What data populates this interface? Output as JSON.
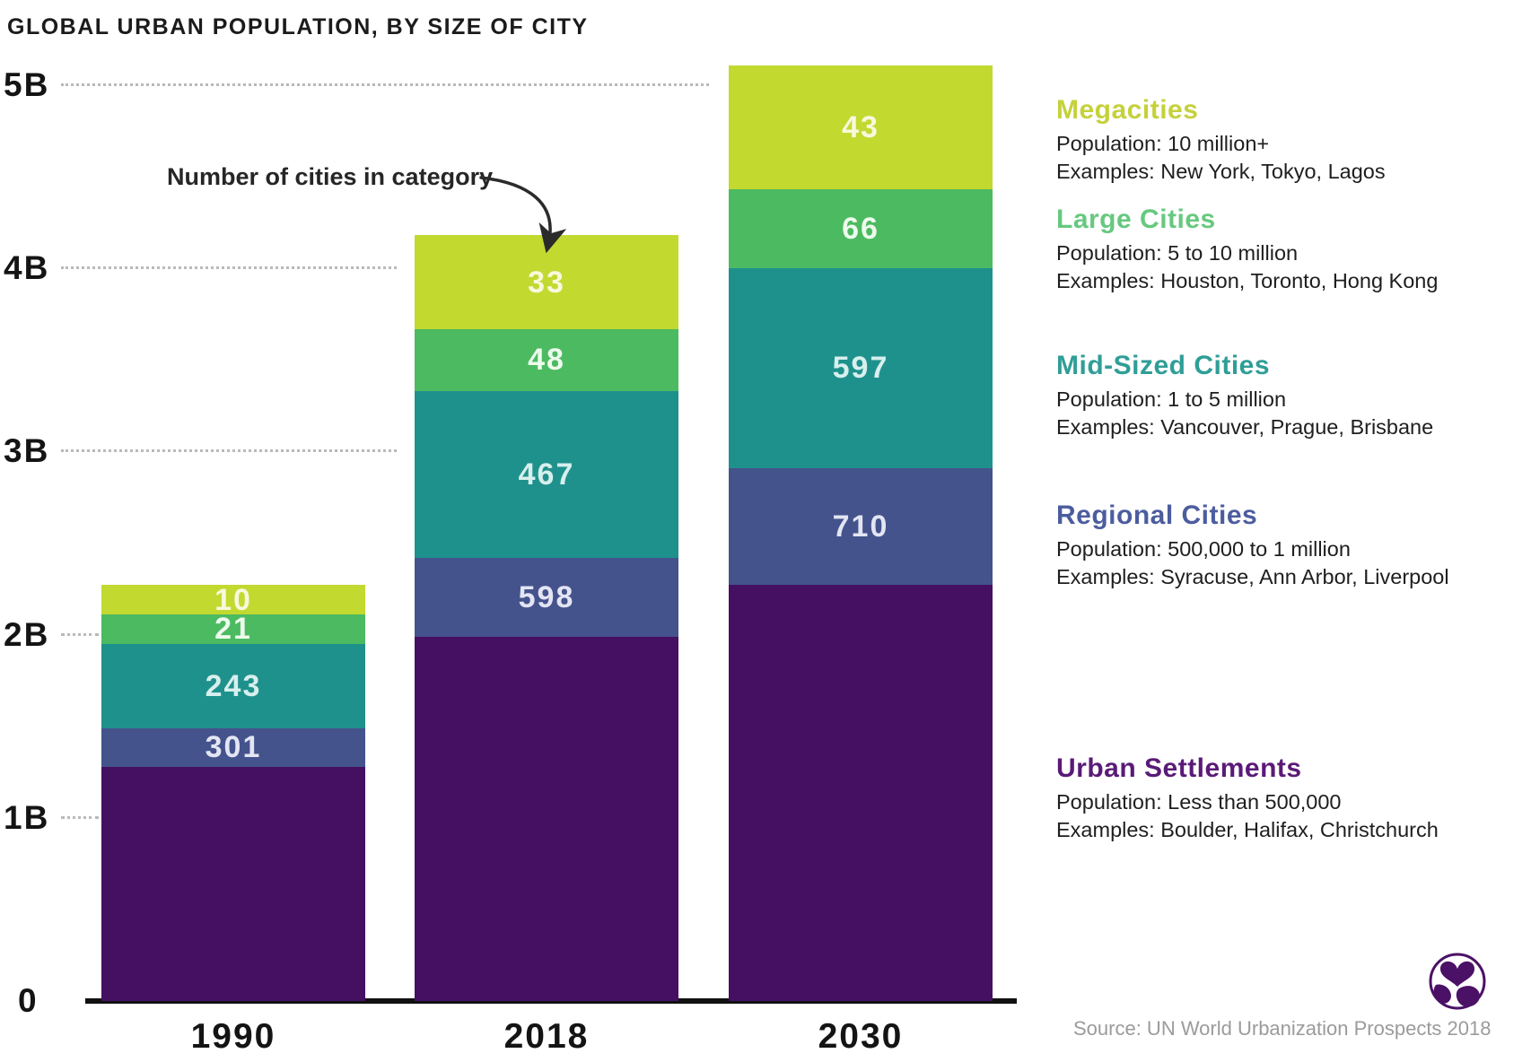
{
  "title": "GLOBAL URBAN POPULATION, BY SIZE OF CITY",
  "annotation": "Number of cities in category",
  "source": "Source: UN World Urbanization Prospects 2018",
  "logo": "visual-capitalist-logo",
  "chart_data": {
    "type": "bar",
    "stacked": true,
    "title": "GLOBAL URBAN POPULATION, BY SIZE OF CITY",
    "unit": "billions of people",
    "categories": [
      "1990",
      "2018",
      "2030"
    ],
    "yticks": [
      "0",
      "1B",
      "2B",
      "3B",
      "4B",
      "5B"
    ],
    "ylim": [
      0,
      5.2
    ],
    "grid": "dotted horizontal",
    "value_labels_shown": "number of cities in category",
    "series": [
      {
        "name": "Urban Settlements",
        "color": "#451061",
        "label_color": "#e8e2f0",
        "values_billions": [
          1.28,
          1.99,
          2.27
        ],
        "city_counts": [
          "",
          "",
          ""
        ]
      },
      {
        "name": "Regional Cities",
        "color": "#44538c",
        "label_color": "#e3e5f3",
        "values_billions": [
          0.21,
          0.43,
          0.64
        ],
        "city_counts": [
          "301",
          "598",
          "710"
        ]
      },
      {
        "name": "Mid-Sized Cities",
        "color": "#1f918c",
        "label_color": "#d7efed",
        "values_billions": [
          0.46,
          0.91,
          1.09
        ],
        "city_counts": [
          "243",
          "467",
          "597"
        ]
      },
      {
        "name": "Large Cities",
        "color": "#4cba61",
        "label_color": "#edfaec",
        "values_billions": [
          0.16,
          0.34,
          0.43
        ],
        "city_counts": [
          "21",
          "48",
          "66"
        ]
      },
      {
        "name": "Megacities",
        "color": "#c2d930",
        "label_color": "#f7f9dc",
        "values_billions": [
          0.16,
          0.51,
          0.68
        ],
        "city_counts": [
          "10",
          "33",
          "43"
        ]
      }
    ]
  },
  "legend": [
    {
      "name": "Megacities",
      "color": "#c5d13c",
      "population": "Population: 10 million+",
      "examples": "Examples: New York, Tokyo, Lagos"
    },
    {
      "name": "Large Cities",
      "color": "#67c87f",
      "population": "Population: 5 to 10 million",
      "examples": "Examples: Houston, Toronto, Hong Kong"
    },
    {
      "name": "Mid-Sized Cities",
      "color": "#2f9e97",
      "population": "Population: 1 to 5 million",
      "examples": "Examples: Vancouver, Prague, Brisbane"
    },
    {
      "name": "Regional Cities",
      "color": "#4c5d9e",
      "population": "Population: 500,000 to 1 million",
      "examples": "Examples: Syracuse, Ann Arbor, Liverpool"
    },
    {
      "name": "Urban Settlements",
      "color": "#5a1a78",
      "population": "Population: Less than 500,000",
      "examples": "Examples: Boulder, Halifax, Christchurch"
    }
  ]
}
